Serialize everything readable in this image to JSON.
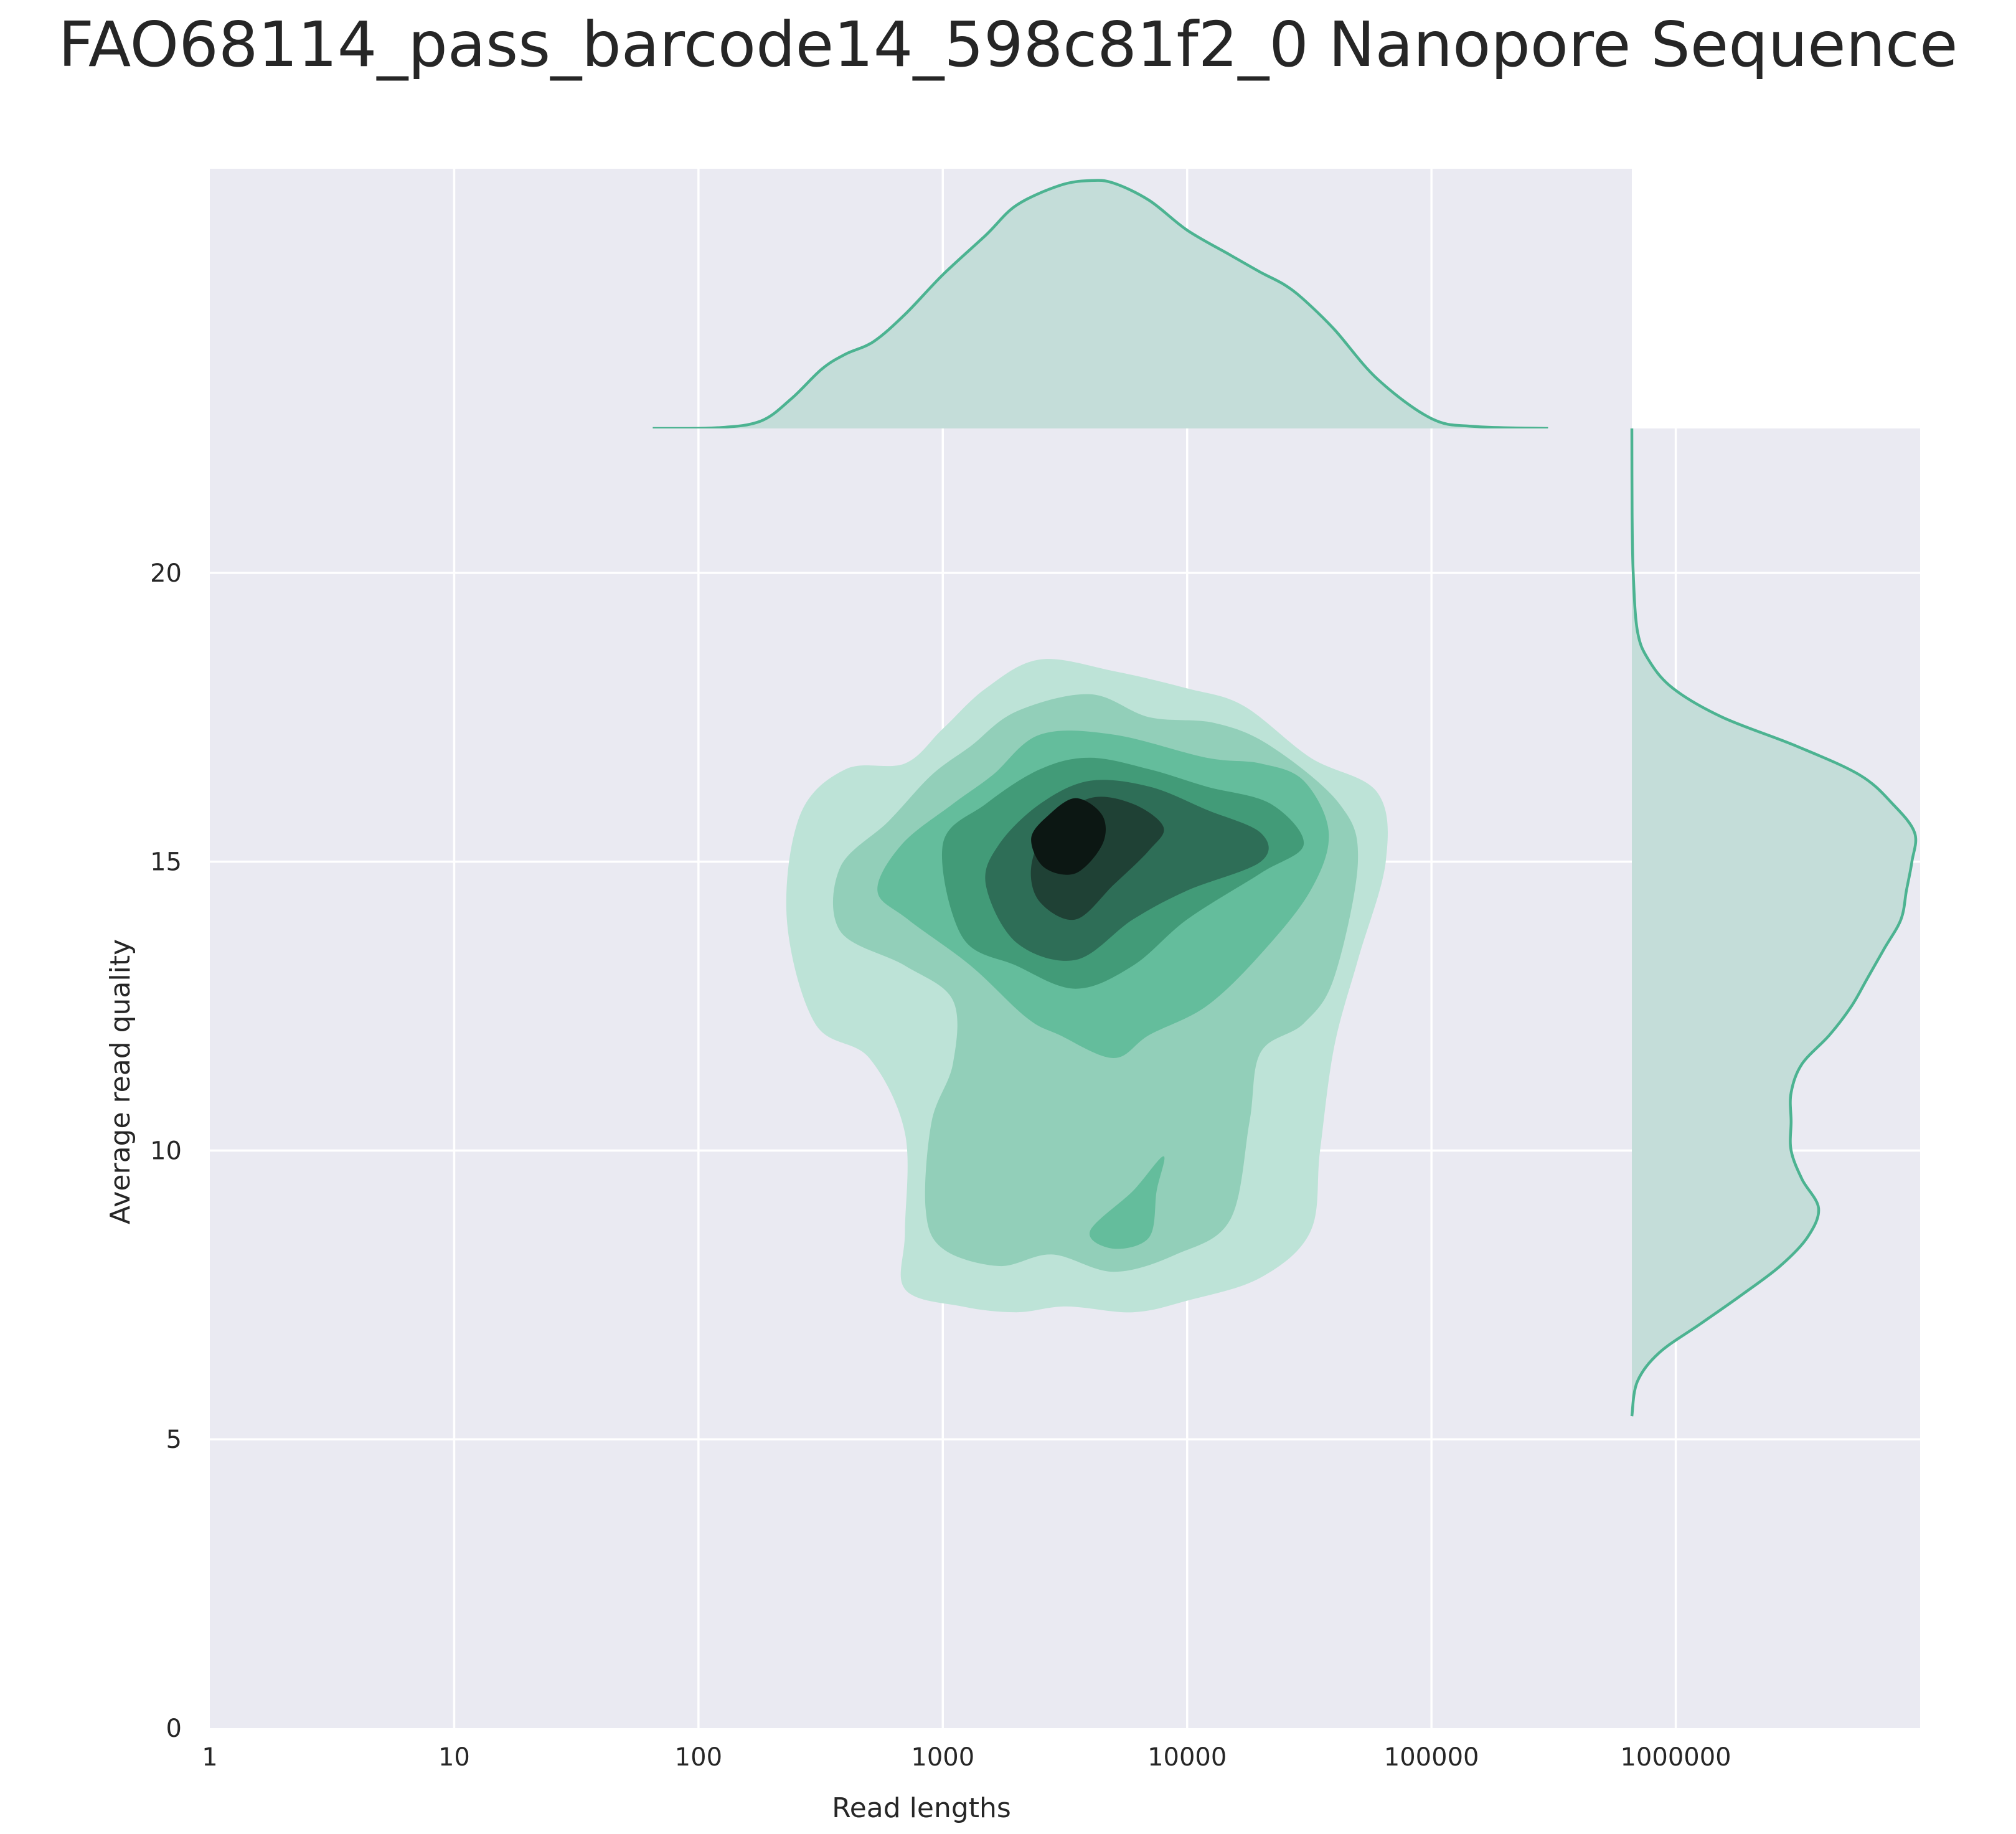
{
  "chart_data": {
    "type": "kde-joint",
    "title": "FAO68114_pass_barcode14_598c81f2_0 Nanopore Sequence",
    "xlabel": "Read lengths",
    "ylabel": "Average read quality",
    "x_scale": "log",
    "xlim": [
      1,
      10000000
    ],
    "ylim": [
      0,
      22.5
    ],
    "x_tick_labels": [
      "1",
      "10",
      "100",
      "1000",
      "10000",
      "100000",
      "1000000"
    ],
    "y_tick_labels": [
      "0",
      "5",
      "10",
      "15",
      "20"
    ],
    "x_ticks": [
      1,
      10,
      100,
      1000,
      10000,
      100000,
      1000000
    ],
    "y_ticks": [
      0,
      5,
      10,
      15,
      20
    ],
    "grid": true,
    "colors": {
      "background": "#eaeaf2",
      "grid": "#ffffff",
      "line": "#4cb391",
      "marginal_fill": "#c4ddd9",
      "levels": [
        "#bde3d7",
        "#92cfb9",
        "#64bd9c",
        "#429b78",
        "#2e6e57",
        "#1f4135",
        "#0c1713"
      ]
    },
    "contours": [
      {
        "level": 1,
        "points": [
          [
            700,
            7.6
          ],
          [
            1200,
            7.3
          ],
          [
            2000,
            7.2
          ],
          [
            3200,
            7.3
          ],
          [
            6000,
            7.2
          ],
          [
            10000,
            7.4
          ],
          [
            20000,
            7.8
          ],
          [
            32000,
            8.6
          ],
          [
            35000,
            10
          ],
          [
            40000,
            11.8
          ],
          [
            50000,
            13.3
          ],
          [
            65000,
            15
          ],
          [
            60000,
            16.2
          ],
          [
            32000,
            16.8
          ],
          [
            17000,
            17.7
          ],
          [
            10000,
            18
          ],
          [
            5000,
            18.3
          ],
          [
            2500,
            18.5
          ],
          [
            1500,
            18
          ],
          [
            1000,
            17.3
          ],
          [
            700,
            16.7
          ],
          [
            400,
            16.6
          ],
          [
            260,
            15.8
          ],
          [
            230,
            14
          ],
          [
            300,
            12.2
          ],
          [
            500,
            11.6
          ],
          [
            700,
            10.3
          ],
          [
            700,
            8.6
          ]
        ]
      },
      {
        "level": 2,
        "points": [
          [
            1000,
            8.3
          ],
          [
            1700,
            8
          ],
          [
            2800,
            8.2
          ],
          [
            5000,
            7.9
          ],
          [
            9000,
            8.2
          ],
          [
            15000,
            8.8
          ],
          [
            18000,
            10.5
          ],
          [
            20000,
            11.7
          ],
          [
            30000,
            12.2
          ],
          [
            40000,
            13
          ],
          [
            50000,
            15
          ],
          [
            42000,
            16
          ],
          [
            22000,
            17
          ],
          [
            13000,
            17.4
          ],
          [
            7000,
            17.5
          ],
          [
            4000,
            17.9
          ],
          [
            2000,
            17.6
          ],
          [
            1300,
            17
          ],
          [
            900,
            16.5
          ],
          [
            600,
            15.7
          ],
          [
            380,
            14.9
          ],
          [
            380,
            13.8
          ],
          [
            700,
            13.2
          ],
          [
            1100,
            12.6
          ],
          [
            1100,
            11.5
          ],
          [
            900,
            10.5
          ],
          [
            850,
            9
          ]
        ]
      },
      {
        "level": 3,
        "points": [
          [
            4000,
            8.6
          ],
          [
            6000,
            9.3
          ],
          [
            8000,
            9.9
          ],
          [
            7500,
            9.3
          ],
          [
            7000,
            8.5
          ],
          [
            5000,
            8.3
          ]
        ]
      },
      {
        "level": 3,
        "points": [
          [
            1300,
            13.2
          ],
          [
            2200,
            12.3
          ],
          [
            3000,
            12
          ],
          [
            5000,
            11.6
          ],
          [
            7000,
            12
          ],
          [
            12000,
            12.5
          ],
          [
            20000,
            13.4
          ],
          [
            32000,
            14.5
          ],
          [
            38000,
            15.5
          ],
          [
            30000,
            16.4
          ],
          [
            20000,
            16.7
          ],
          [
            12000,
            16.8
          ],
          [
            5000,
            17.2
          ],
          [
            2500,
            17.2
          ],
          [
            1600,
            16.5
          ],
          [
            1100,
            16
          ],
          [
            680,
            15.3
          ],
          [
            540,
            14.5
          ],
          [
            720,
            14
          ]
        ]
      },
      {
        "level": 4,
        "points": [
          [
            1200,
            13.7
          ],
          [
            2000,
            13.2
          ],
          [
            3500,
            12.8
          ],
          [
            6000,
            13.2
          ],
          [
            10000,
            14
          ],
          [
            20000,
            14.8
          ],
          [
            30000,
            15.3
          ],
          [
            22000,
            16
          ],
          [
            12000,
            16.3
          ],
          [
            7000,
            16.6
          ],
          [
            4000,
            16.8
          ],
          [
            2500,
            16.6
          ],
          [
            1500,
            16
          ],
          [
            1000,
            15.3
          ]
        ]
      },
      {
        "level": 5,
        "points": [
          [
            2000,
            13.6
          ],
          [
            3500,
            13.3
          ],
          [
            6000,
            14
          ],
          [
            10000,
            14.5
          ],
          [
            20000,
            15
          ],
          [
            20000,
            15.5
          ],
          [
            12000,
            15.9
          ],
          [
            7000,
            16.3
          ],
          [
            4000,
            16.4
          ],
          [
            2500,
            16
          ],
          [
            1700,
            15.3
          ],
          [
            1500,
            14.6
          ]
        ]
      },
      {
        "level": 6,
        "points": [
          [
            2500,
            14.3
          ],
          [
            3500,
            14.0
          ],
          [
            5000,
            14.6
          ],
          [
            7000,
            15.2
          ],
          [
            8000,
            15.6
          ],
          [
            6000,
            16.0
          ],
          [
            4000,
            16.1
          ],
          [
            2700,
            15.6
          ],
          [
            2300,
            14.9
          ]
        ]
      },
      {
        "level": 7,
        "points": [
          [
            2600,
            14.9
          ],
          [
            3500,
            14.8
          ],
          [
            4500,
            15.3
          ],
          [
            4500,
            15.8
          ],
          [
            3500,
            16.1
          ],
          [
            2700,
            15.8
          ],
          [
            2300,
            15.4
          ]
        ]
      }
    ],
    "x_marginal": [
      [
        65,
        0
      ],
      [
        120,
        0.003
      ],
      [
        180,
        0.03
      ],
      [
        240,
        0.12
      ],
      [
        320,
        0.24
      ],
      [
        400,
        0.3
      ],
      [
        520,
        0.35
      ],
      [
        700,
        0.46
      ],
      [
        1000,
        0.62
      ],
      [
        1500,
        0.78
      ],
      [
        2000,
        0.9
      ],
      [
        3000,
        0.98
      ],
      [
        4000,
        1.0
      ],
      [
        5000,
        0.99
      ],
      [
        7000,
        0.92
      ],
      [
        10000,
        0.8
      ],
      [
        15000,
        0.7
      ],
      [
        20000,
        0.63
      ],
      [
        25000,
        0.58
      ],
      [
        30000,
        0.52
      ],
      [
        40000,
        0.4
      ],
      [
        60000,
        0.2
      ],
      [
        100000,
        0.04
      ],
      [
        150000,
        0.008
      ],
      [
        300000,
        0
      ]
    ],
    "y_marginal": [
      [
        5.4,
        0
      ],
      [
        6.0,
        0.02
      ],
      [
        6.5,
        0.1
      ],
      [
        7.0,
        0.25
      ],
      [
        7.5,
        0.4
      ],
      [
        8.0,
        0.54
      ],
      [
        8.5,
        0.64
      ],
      [
        9.0,
        0.68
      ],
      [
        9.5,
        0.62
      ],
      [
        10.0,
        0.58
      ],
      [
        10.5,
        0.58
      ],
      [
        11.0,
        0.58
      ],
      [
        11.5,
        0.62
      ],
      [
        12.0,
        0.72
      ],
      [
        12.5,
        0.8
      ],
      [
        13.0,
        0.86
      ],
      [
        13.5,
        0.92
      ],
      [
        14.0,
        0.98
      ],
      [
        14.5,
        1.0
      ],
      [
        15.0,
        1.02
      ],
      [
        15.5,
        1.03
      ],
      [
        16.0,
        0.95
      ],
      [
        16.5,
        0.83
      ],
      [
        17.0,
        0.6
      ],
      [
        17.5,
        0.33
      ],
      [
        18.0,
        0.15
      ],
      [
        18.5,
        0.06
      ],
      [
        19.0,
        0.02
      ],
      [
        20.0,
        0.005
      ],
      [
        21.0,
        0.001
      ],
      [
        22.5,
        0
      ]
    ]
  }
}
